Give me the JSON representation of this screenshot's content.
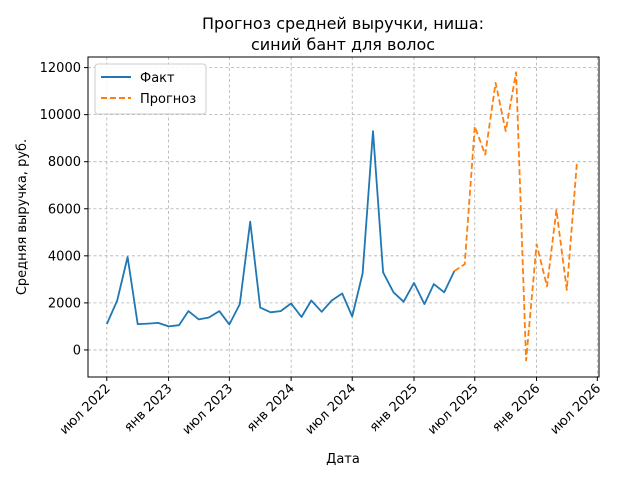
{
  "chart_data": {
    "type": "line",
    "title_line1": "Прогноз средней выручки, ниша:",
    "title_line2": "синий бант для волос",
    "xlabel": "Дата",
    "ylabel": "Средняя выручка, руб.",
    "ylim": [
      -1150,
      12450
    ],
    "xlim": [
      "2022-05-06",
      "2026-07-06"
    ],
    "grid": true,
    "legend_position": "top-left",
    "y_ticks": [
      0,
      2000,
      4000,
      6000,
      8000,
      10000,
      12000
    ],
    "x_ticks": [
      {
        "date": "2022-07-01",
        "label": "июл 2022"
      },
      {
        "date": "2023-01-01",
        "label": "янв 2023"
      },
      {
        "date": "2023-07-01",
        "label": "июл 2023"
      },
      {
        "date": "2024-01-01",
        "label": "янв 2024"
      },
      {
        "date": "2024-07-01",
        "label": "июл 2024"
      },
      {
        "date": "2025-01-01",
        "label": "янв 2025"
      },
      {
        "date": "2025-07-01",
        "label": "июл 2025"
      },
      {
        "date": "2026-01-01",
        "label": "янв 2026"
      },
      {
        "date": "2026-07-01",
        "label": "июл 2026"
      }
    ],
    "series": [
      {
        "name": "Факт",
        "color": "#1f77b4",
        "dash": "solid",
        "x": [
          "2022-07-01",
          "2022-08-01",
          "2022-09-01",
          "2022-10-01",
          "2022-11-01",
          "2022-12-01",
          "2023-01-01",
          "2023-02-01",
          "2023-03-01",
          "2023-04-01",
          "2023-05-01",
          "2023-06-01",
          "2023-07-01",
          "2023-08-01",
          "2023-09-01",
          "2023-10-01",
          "2023-11-01",
          "2023-12-01",
          "2024-01-01",
          "2024-02-01",
          "2024-03-01",
          "2024-04-01",
          "2024-05-01",
          "2024-06-01",
          "2024-07-01",
          "2024-08-01",
          "2024-09-01",
          "2024-10-01",
          "2024-11-01",
          "2024-12-01",
          "2025-01-01",
          "2025-02-01",
          "2025-03-01",
          "2025-04-01",
          "2025-05-01"
        ],
        "y": [
          1100,
          2100,
          3950,
          1100,
          1120,
          1150,
          1000,
          1050,
          1650,
          1300,
          1380,
          1650,
          1080,
          1950,
          5450,
          1800,
          1600,
          1650,
          1980,
          1400,
          2100,
          1620,
          2100,
          2400,
          1420,
          3250,
          9300,
          3300,
          2450,
          2050,
          2850,
          1950,
          2800,
          2450,
          3350
        ]
      },
      {
        "name": "Прогноз",
        "color": "#ff7f0e",
        "dash": "dashed",
        "x": [
          "2025-05-01",
          "2025-06-01",
          "2025-07-01",
          "2025-08-01",
          "2025-09-01",
          "2025-10-01",
          "2025-11-01",
          "2025-12-01",
          "2026-01-01",
          "2026-02-01",
          "2026-03-01",
          "2026-04-01",
          "2026-05-01"
        ],
        "y": [
          3350,
          3650,
          9500,
          8300,
          11350,
          9300,
          11800,
          -450,
          4500,
          2700,
          5950,
          2550,
          7900
        ]
      }
    ]
  }
}
